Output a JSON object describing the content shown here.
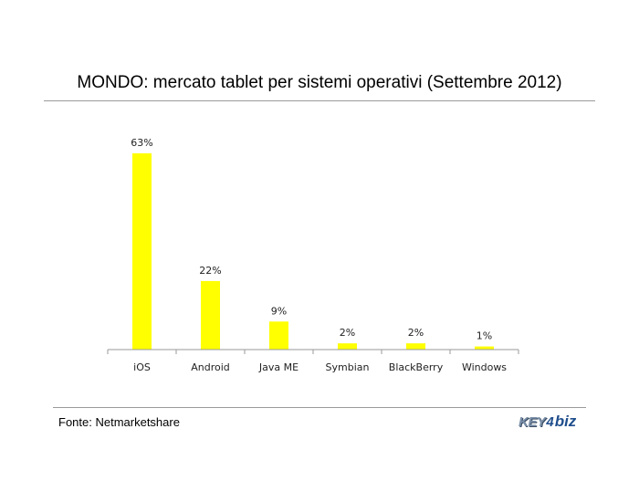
{
  "header": {
    "title": "MONDO: mercato tablet per sistemi operativi (Settembre 2012)"
  },
  "footer": {
    "source": "Fonte: Netmarketshare",
    "logo": {
      "key": "KEY",
      "four": "4",
      "biz": "biz"
    }
  },
  "colors": {
    "bar": "#ffff00",
    "axis": "#9a9a9a"
  },
  "chart_data": {
    "type": "bar",
    "categories": [
      "iOS",
      "Android",
      "Java ME",
      "Symbian",
      "BlackBerry",
      "Windows"
    ],
    "values": [
      63,
      22,
      9,
      2,
      2,
      1
    ],
    "data_labels": [
      "63%",
      "22%",
      "9%",
      "2%",
      "2%",
      "1%"
    ],
    "title": "MONDO: mercato tablet per sistemi operativi (Settembre 2012)",
    "xlabel": "",
    "ylabel": "",
    "unit": "%",
    "ylim": [
      0,
      63
    ],
    "grid": false,
    "legend": "none"
  }
}
